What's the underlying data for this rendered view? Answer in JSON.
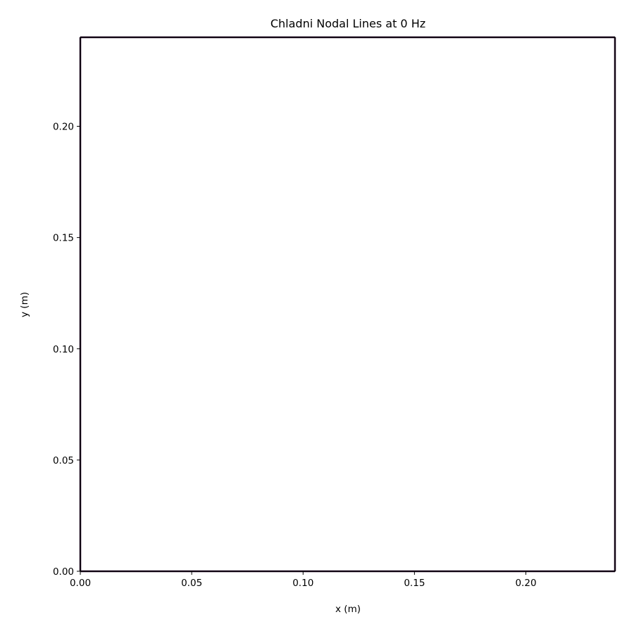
{
  "chart_data": {
    "type": "contour",
    "title": "Chladni Nodal Lines at 0 Hz",
    "xlabel": "x (m)",
    "ylabel": "y (m)",
    "xlim": [
      0.0,
      0.24
    ],
    "ylim": [
      0.0,
      0.24
    ],
    "xticks": [
      0.0,
      0.05,
      0.1,
      0.15,
      0.2
    ],
    "xtick_labels": [
      "0.00",
      "0.05",
      "0.10",
      "0.15",
      "0.20"
    ],
    "yticks": [
      0.0,
      0.05,
      0.1,
      0.15,
      0.2
    ],
    "ytick_labels": [
      "0.00",
      "0.05",
      "0.10",
      "0.15",
      "0.20"
    ],
    "grid": false,
    "legend": false,
    "colors": {
      "nodal_line": "#2a0a2e",
      "axes": "#000000",
      "background": "#ffffff"
    },
    "nodal_segments": [
      {
        "edge": "bottom",
        "x": [
          0.0,
          0.24
        ],
        "y": [
          0.0,
          0.0
        ]
      },
      {
        "edge": "left",
        "x": [
          0.0,
          0.0
        ],
        "y": [
          0.0,
          0.24
        ]
      },
      {
        "edge": "top",
        "x": [
          0.0,
          0.24
        ],
        "y": [
          0.24,
          0.24
        ]
      },
      {
        "edge": "right",
        "x": [
          0.24,
          0.24
        ],
        "y": [
          0.0,
          0.24
        ]
      }
    ]
  }
}
